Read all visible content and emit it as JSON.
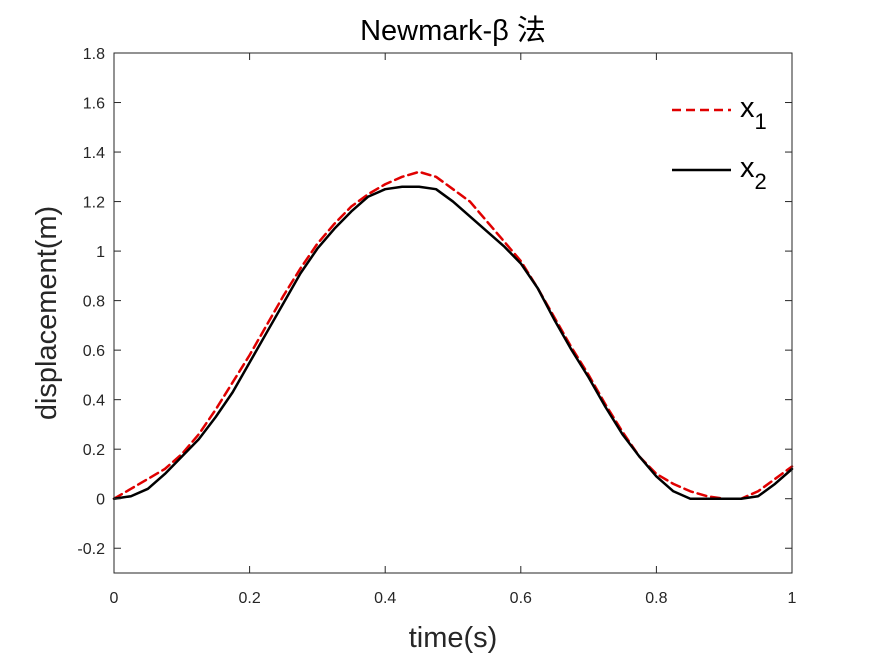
{
  "chart_data": {
    "type": "line",
    "title": "Newmark-β 法",
    "xlabel": "time(s)",
    "ylabel": "displacement(m)",
    "xlim": [
      0,
      1
    ],
    "ylim": [
      -0.3,
      1.8
    ],
    "xticks": [
      0,
      0.2,
      0.4,
      0.6,
      0.8,
      1
    ],
    "xtick_labels": [
      "0",
      "0.2",
      "0.4",
      "0.6",
      "0.8",
      "1"
    ],
    "yticks": [
      -0.2,
      0,
      0.2,
      0.4,
      0.6,
      0.8,
      1,
      1.2,
      1.4,
      1.6,
      1.8
    ],
    "ytick_labels": [
      "-0.2",
      "0",
      "0.2",
      "0.4",
      "0.6",
      "0.8",
      "1",
      "1.2",
      "1.4",
      "1.6",
      "1.8"
    ],
    "grid": false,
    "legend_position": "top-right",
    "series": [
      {
        "name": "x1",
        "label_base": "x",
        "label_sub": "1",
        "color": "#e00000",
        "style": "dashed",
        "x": [
          0,
          0.025,
          0.05,
          0.075,
          0.1,
          0.125,
          0.15,
          0.175,
          0.2,
          0.225,
          0.25,
          0.275,
          0.3,
          0.325,
          0.35,
          0.375,
          0.4,
          0.425,
          0.45,
          0.475,
          0.5,
          0.525,
          0.55,
          0.575,
          0.6,
          0.625,
          0.65,
          0.675,
          0.7,
          0.725,
          0.75,
          0.775,
          0.8,
          0.825,
          0.85,
          0.875,
          0.9,
          0.925,
          0.95,
          0.975,
          1.0
        ],
        "y": [
          0.0,
          0.04,
          0.08,
          0.12,
          0.18,
          0.26,
          0.36,
          0.47,
          0.58,
          0.7,
          0.82,
          0.93,
          1.03,
          1.11,
          1.18,
          1.23,
          1.27,
          1.3,
          1.32,
          1.3,
          1.25,
          1.2,
          1.12,
          1.04,
          0.96,
          0.85,
          0.73,
          0.61,
          0.5,
          0.38,
          0.27,
          0.17,
          0.1,
          0.06,
          0.03,
          0.01,
          0.0,
          0.0,
          0.03,
          0.08,
          0.13
        ]
      },
      {
        "name": "x2",
        "label_base": "x",
        "label_sub": "2",
        "color": "#000000",
        "style": "solid",
        "x": [
          0,
          0.025,
          0.05,
          0.075,
          0.1,
          0.125,
          0.15,
          0.175,
          0.2,
          0.225,
          0.25,
          0.275,
          0.3,
          0.325,
          0.35,
          0.375,
          0.4,
          0.425,
          0.45,
          0.475,
          0.5,
          0.525,
          0.55,
          0.575,
          0.6,
          0.625,
          0.65,
          0.675,
          0.7,
          0.725,
          0.75,
          0.775,
          0.8,
          0.825,
          0.85,
          0.875,
          0.9,
          0.925,
          0.95,
          0.975,
          1.0
        ],
        "y": [
          0.0,
          0.01,
          0.04,
          0.1,
          0.17,
          0.24,
          0.33,
          0.43,
          0.55,
          0.67,
          0.79,
          0.91,
          1.01,
          1.09,
          1.16,
          1.22,
          1.25,
          1.26,
          1.26,
          1.25,
          1.2,
          1.14,
          1.08,
          1.02,
          0.95,
          0.85,
          0.72,
          0.6,
          0.49,
          0.37,
          0.26,
          0.17,
          0.09,
          0.03,
          0.0,
          0.0,
          0.0,
          0.0,
          0.01,
          0.06,
          0.12
        ]
      }
    ]
  }
}
